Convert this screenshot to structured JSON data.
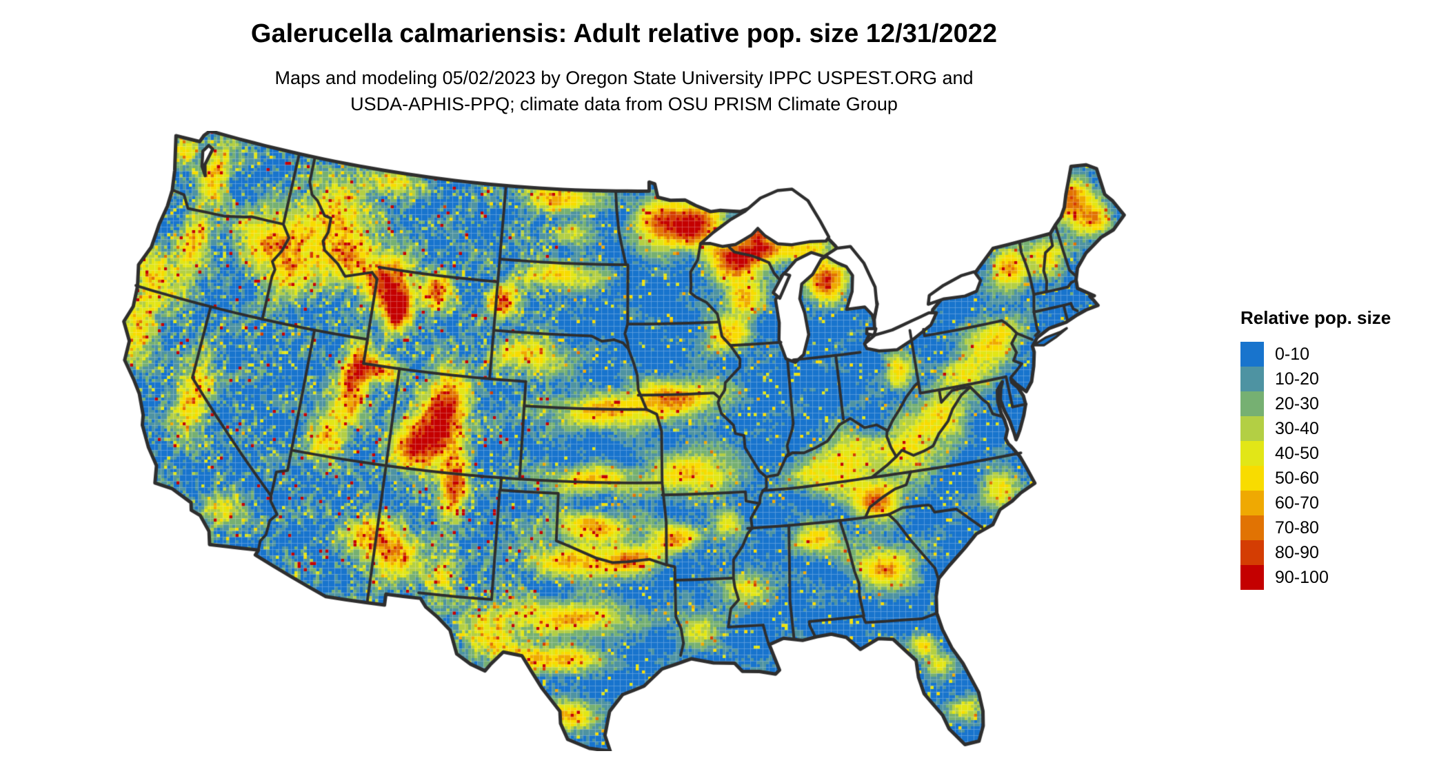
{
  "title": "Galerucella calmariensis: Adult relative pop. size 12/31/2022",
  "subtitle": {
    "line1": "Maps and modeling 05/02/2023 by Oregon State University IPPC USPEST.ORG and",
    "line2": "USDA-APHIS-PPQ; climate data from OSU PRISM Climate Group"
  },
  "legend": {
    "title": "Relative pop. size",
    "bins": [
      {
        "label": "0-10",
        "color": "#1874cd"
      },
      {
        "label": "10-20",
        "color": "#4e93a2"
      },
      {
        "label": "20-30",
        "color": "#76b072"
      },
      {
        "label": "30-40",
        "color": "#b3cf44"
      },
      {
        "label": "40-50",
        "color": "#e2e617"
      },
      {
        "label": "50-60",
        "color": "#f8dc00"
      },
      {
        "label": "60-70",
        "color": "#efa902"
      },
      {
        "label": "70-80",
        "color": "#e17303"
      },
      {
        "label": "80-90",
        "color": "#d43d03"
      },
      {
        "label": "90-100",
        "color": "#c40000"
      }
    ]
  },
  "map": {
    "region_label": "Continental United States",
    "border_color": "#2e2e2e",
    "water_color": "#ffffff",
    "background_color": "#ffffff"
  }
}
